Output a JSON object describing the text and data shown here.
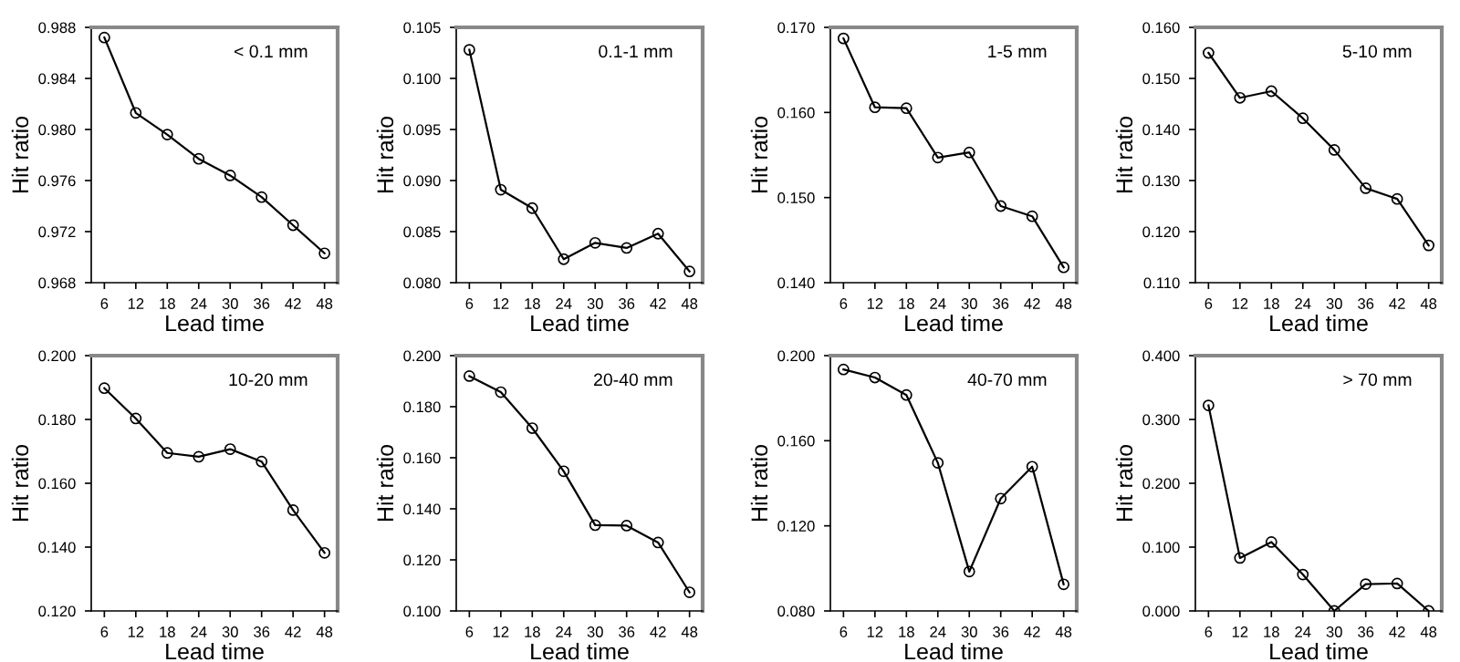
{
  "chart_data": [
    {
      "type": "line",
      "x": [
        6,
        12,
        18,
        24,
        30,
        36,
        42,
        48
      ],
      "xlabel": "Lead time",
      "ylabel": "Hit ratio",
      "annotations": [
        "< 0.1 mm"
      ],
      "marker": "circle",
      "line_style": "solid",
      "grid": false,
      "xlim": [
        3.5,
        50.5
      ],
      "xticks": [
        6,
        12,
        18,
        24,
        30,
        36,
        42,
        48
      ],
      "ylim": [
        0.968,
        0.988
      ],
      "yticks": [
        {
          "value": 0.968,
          "label": "0.968"
        },
        {
          "value": 0.972,
          "label": "0.972"
        },
        {
          "value": 0.976,
          "label": "0.976"
        },
        {
          "value": 0.98,
          "label": "0.980"
        },
        {
          "value": 0.984,
          "label": "0.984"
        },
        {
          "value": 0.988,
          "label": "0.988"
        }
      ],
      "series": [
        {
          "color": "#000000",
          "values": [
            0.9872,
            0.9813,
            0.9796,
            0.9777,
            0.9764,
            0.9747,
            0.9725,
            0.9703
          ]
        }
      ]
    },
    {
      "type": "line",
      "x": [
        6,
        12,
        18,
        24,
        30,
        36,
        42,
        48
      ],
      "xlabel": "Lead time",
      "ylabel": "Hit ratio",
      "annotations": [
        "0.1-1 mm"
      ],
      "marker": "circle",
      "line_style": "solid",
      "grid": false,
      "xlim": [
        3.5,
        50.5
      ],
      "xticks": [
        6,
        12,
        18,
        24,
        30,
        36,
        42,
        48
      ],
      "ylim": [
        0.08,
        0.105
      ],
      "yticks": [
        {
          "value": 0.08,
          "label": "0.080"
        },
        {
          "value": 0.085,
          "label": "0.085"
        },
        {
          "value": 0.09,
          "label": "0.090"
        },
        {
          "value": 0.095,
          "label": "0.095"
        },
        {
          "value": 0.1,
          "label": "0.100"
        },
        {
          "value": 0.105,
          "label": "0.105"
        }
      ],
      "series": [
        {
          "color": "#000000",
          "values": [
            0.1028,
            0.0891,
            0.0873,
            0.0823,
            0.0839,
            0.0834,
            0.0848,
            0.0811
          ]
        }
      ]
    },
    {
      "type": "line",
      "x": [
        6,
        12,
        18,
        24,
        30,
        36,
        42,
        48
      ],
      "xlabel": "Lead time",
      "ylabel": "Hit ratio",
      "annotations": [
        "1-5 mm"
      ],
      "marker": "circle",
      "line_style": "solid",
      "grid": false,
      "xlim": [
        3.5,
        50.5
      ],
      "xticks": [
        6,
        12,
        18,
        24,
        30,
        36,
        42,
        48
      ],
      "ylim": [
        0.14,
        0.17
      ],
      "yticks": [
        {
          "value": 0.14,
          "label": "0.140"
        },
        {
          "value": 0.15,
          "label": "0.150"
        },
        {
          "value": 0.16,
          "label": "0.160"
        },
        {
          "value": 0.17,
          "label": "0.170"
        }
      ],
      "series": [
        {
          "color": "#000000",
          "values": [
            0.1687,
            0.1606,
            0.1605,
            0.1547,
            0.1553,
            0.149,
            0.1478,
            0.1418
          ]
        }
      ]
    },
    {
      "type": "line",
      "x": [
        6,
        12,
        18,
        24,
        30,
        36,
        42,
        48
      ],
      "xlabel": "Lead time",
      "ylabel": "Hit ratio",
      "annotations": [
        "5-10 mm"
      ],
      "marker": "circle",
      "line_style": "solid",
      "grid": false,
      "xlim": [
        3.5,
        50.5
      ],
      "xticks": [
        6,
        12,
        18,
        24,
        30,
        36,
        42,
        48
      ],
      "ylim": [
        0.11,
        0.16
      ],
      "yticks": [
        {
          "value": 0.11,
          "label": "0.110"
        },
        {
          "value": 0.12,
          "label": "0.120"
        },
        {
          "value": 0.13,
          "label": "0.130"
        },
        {
          "value": 0.14,
          "label": "0.140"
        },
        {
          "value": 0.15,
          "label": "0.150"
        },
        {
          "value": 0.16,
          "label": "0.160"
        }
      ],
      "series": [
        {
          "color": "#000000",
          "values": [
            0.155,
            0.1462,
            0.1475,
            0.1422,
            0.136,
            0.1285,
            0.1264,
            0.1173
          ]
        }
      ]
    },
    {
      "type": "line",
      "x": [
        6,
        12,
        18,
        24,
        30,
        36,
        42,
        48
      ],
      "xlabel": "Lead time",
      "ylabel": "Hit ratio",
      "annotations": [
        "10-20 mm"
      ],
      "marker": "circle",
      "line_style": "solid",
      "grid": false,
      "xlim": [
        3.5,
        50.5
      ],
      "xticks": [
        6,
        12,
        18,
        24,
        30,
        36,
        42,
        48
      ],
      "ylim": [
        0.12,
        0.2
      ],
      "yticks": [
        {
          "value": 0.12,
          "label": "0.120"
        },
        {
          "value": 0.14,
          "label": "0.140"
        },
        {
          "value": 0.16,
          "label": "0.160"
        },
        {
          "value": 0.18,
          "label": "0.180"
        },
        {
          "value": 0.2,
          "label": "0.200"
        }
      ],
      "series": [
        {
          "color": "#000000",
          "values": [
            0.1898,
            0.1803,
            0.1695,
            0.1683,
            0.1707,
            0.1668,
            0.1516,
            0.1382
          ]
        }
      ]
    },
    {
      "type": "line",
      "x": [
        6,
        12,
        18,
        24,
        30,
        36,
        42,
        48
      ],
      "xlabel": "Lead time",
      "ylabel": "Hit ratio",
      "annotations": [
        "20-40 mm"
      ],
      "marker": "circle",
      "line_style": "solid",
      "grid": false,
      "xlim": [
        3.5,
        50.5
      ],
      "xticks": [
        6,
        12,
        18,
        24,
        30,
        36,
        42,
        48
      ],
      "ylim": [
        0.1,
        0.2
      ],
      "yticks": [
        {
          "value": 0.1,
          "label": "0.100"
        },
        {
          "value": 0.12,
          "label": "0.120"
        },
        {
          "value": 0.14,
          "label": "0.140"
        },
        {
          "value": 0.16,
          "label": "0.160"
        },
        {
          "value": 0.18,
          "label": "0.180"
        },
        {
          "value": 0.2,
          "label": "0.200"
        }
      ],
      "series": [
        {
          "color": "#000000",
          "values": [
            0.192,
            0.1857,
            0.1716,
            0.1547,
            0.1336,
            0.1334,
            0.1268,
            0.1073
          ]
        }
      ]
    },
    {
      "type": "line",
      "x": [
        6,
        12,
        18,
        24,
        30,
        36,
        42,
        48
      ],
      "xlabel": "Lead time",
      "ylabel": "Hit ratio",
      "annotations": [
        "40-70 mm"
      ],
      "marker": "circle",
      "line_style": "solid",
      "grid": false,
      "xlim": [
        3.5,
        50.5
      ],
      "xticks": [
        6,
        12,
        18,
        24,
        30,
        36,
        42,
        48
      ],
      "ylim": [
        0.08,
        0.2
      ],
      "yticks": [
        {
          "value": 0.08,
          "label": "0.080"
        },
        {
          "value": 0.12,
          "label": "0.120"
        },
        {
          "value": 0.16,
          "label": "0.160"
        },
        {
          "value": 0.2,
          "label": "0.200"
        }
      ],
      "series": [
        {
          "color": "#000000",
          "values": [
            0.1935,
            0.1897,
            0.1815,
            0.1496,
            0.0985,
            0.1328,
            0.1478,
            0.0925
          ]
        }
      ]
    },
    {
      "type": "line",
      "x": [
        6,
        12,
        18,
        24,
        30,
        36,
        42,
        48
      ],
      "xlabel": "Lead time",
      "ylabel": "Hit ratio",
      "annotations": [
        "> 70 mm"
      ],
      "marker": "circle",
      "line_style": "solid",
      "grid": false,
      "xlim": [
        3.5,
        50.5
      ],
      "xticks": [
        6,
        12,
        18,
        24,
        30,
        36,
        42,
        48
      ],
      "ylim": [
        0.0,
        0.4
      ],
      "yticks": [
        {
          "value": 0.0,
          "label": "0.000"
        },
        {
          "value": 0.1,
          "label": "0.100"
        },
        {
          "value": 0.2,
          "label": "0.200"
        },
        {
          "value": 0.3,
          "label": "0.300"
        },
        {
          "value": 0.4,
          "label": "0.400"
        }
      ],
      "series": [
        {
          "color": "#000000",
          "values": [
            0.322,
            0.083,
            0.108,
            0.057,
            0.0,
            0.042,
            0.043,
            0.0
          ]
        }
      ]
    }
  ]
}
